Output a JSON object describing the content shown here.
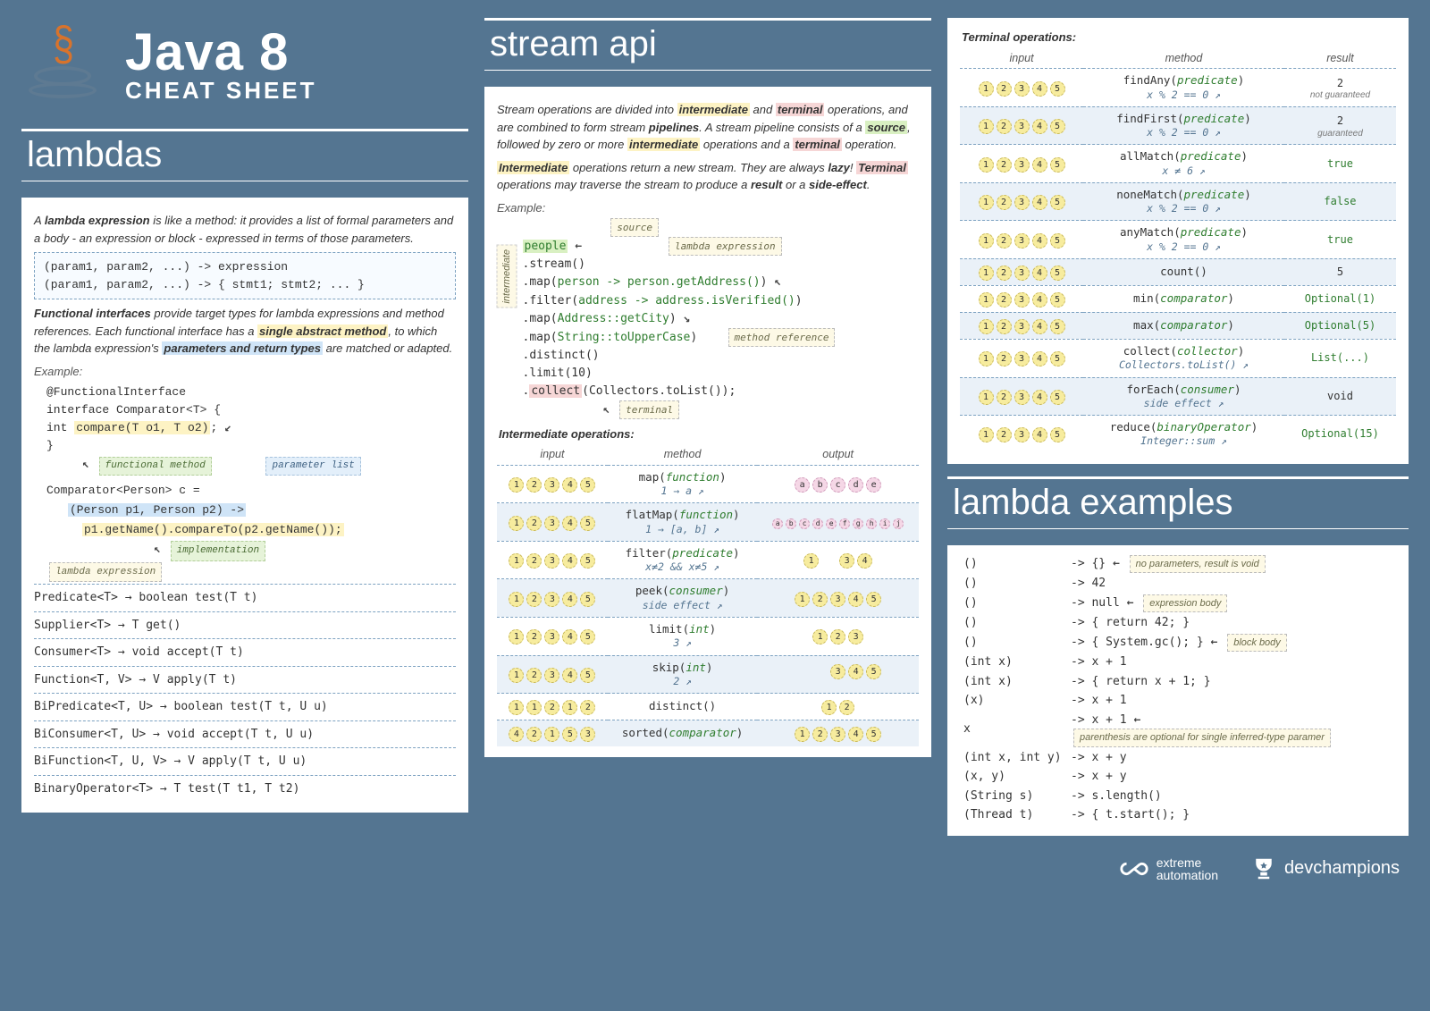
{
  "colors": {
    "page_bg": "#547591",
    "card_bg": "#ffffff",
    "hl_yellow": "#fdf3c4",
    "hl_green": "#d9f0c2",
    "hl_blue": "#cfe4f7",
    "hl_pink": "#f6d6d6",
    "ball_yellow": "#f7ec9e",
    "ball_grey": "#e7e7e7",
    "ball_pink": "#f5d7e6",
    "dash_border": "#7da2c1"
  },
  "header": {
    "title": "Java 8",
    "subtitle": "CHEAT SHEET"
  },
  "sections": {
    "lambdas_title": "lambdas",
    "stream_title": "stream api",
    "examples_title": "lambda examples"
  },
  "lambdas": {
    "intro_a": "A ",
    "intro_b": "lambda expression",
    "intro_c": " is like a method: it provides a list of formal parameters and a body - an expression or block - expressed in terms of those parameters.",
    "syntax1": "(param1, param2, ...) -> expression",
    "syntax2": "(param1, param2, ...) -> { stmt1; stmt2; ... }",
    "fi_a": "Functional interfaces",
    "fi_b": " provide target types for lambda expressions and method references. Each functional interface has a ",
    "fi_c": "single abstract method",
    "fi_d": ", to which the lambda expression's ",
    "fi_e": "parameters and return types",
    "fi_f": " are matched or adapted.",
    "example_label": "Example:",
    "fi_code_l1": "@FunctionalInterface",
    "fi_code_l2": "interface Comparator<T> {",
    "fi_code_l3a": "    int ",
    "fi_code_l3b": "compare(T o1, T o2)",
    "fi_code_l3c": ";",
    "fi_code_l4": "}",
    "annot_functional_method": "functional method",
    "annot_param_list": "parameter list",
    "comp_l1": "Comparator<Person> c =",
    "comp_l2": "(Person p1, Person p2) ->",
    "comp_l3": "p1.getName().compareTo(p2.getName());",
    "annot_impl": "implementation",
    "annot_lambda_expr": "lambda expression",
    "fi_list": [
      "Predicate<T> → boolean test(T t)",
      "Supplier<T> → T get()",
      "Consumer<T> → void accept(T t)",
      "Function<T, V> → V apply(T t)",
      "BiPredicate<T, U> → boolean test(T t, U u)",
      "BiConsumer<T, U> → void accept(T t, U u)",
      "BiFunction<T, U, V> → V apply(T t, U u)",
      "BinaryOperator<T> → T test(T t1, T t2)"
    ]
  },
  "stream": {
    "p1_a": "Stream operations are divided into ",
    "p1_b": "intermediate",
    "p1_c": " and ",
    "p1_d": "terminal",
    "p1_e": " operations, and are combined to form stream ",
    "p1_f": "pipelines",
    "p1_g": ". A stream pipeline consists of a ",
    "p1_h": "source",
    "p1_i": ", followed by zero or more ",
    "p1_j": "intermediate",
    "p1_k": " operations and a ",
    "p1_l": "terminal",
    "p1_m": " operation.",
    "p2_a": "Intermediate",
    "p2_b": " operations return a new stream. They are always ",
    "p2_c": "lazy",
    "p2_d": "! ",
    "p2_e": "Terminal",
    "p2_f": " operations may traverse the stream to produce a ",
    "p2_g": "result",
    "p2_h": " or a ",
    "p2_i": "side-effect",
    "p2_j": ".",
    "example_label": "Example:",
    "annot_source": "source",
    "annot_lambda": "lambda expression",
    "annot_methodref": "method reference",
    "annot_terminal": "terminal",
    "annot_intermediate": "intermediate",
    "code": {
      "l1": "people",
      "l2": "  .stream()",
      "l3a": "  .map(",
      "l3b": "person -> person.getAddress()",
      "l3c": ")",
      "l4a": "  .filter(",
      "l4b": "address -> address.isVerified()",
      "l4c": ")",
      "l5a": "  .map(",
      "l5b": "Address::getCity",
      "l5c": ")",
      "l6a": "  .map(",
      "l6b": "String::toUpperCase",
      "l6c": ")",
      "l7": "  .distinct()",
      "l8": "  .limit(10)",
      "l9a": "  .",
      "l9b": "collect",
      "l9c": "(Collectors.toList());"
    }
  },
  "intermediate_table": {
    "title": "Intermediate operations:",
    "headers": {
      "input": "input",
      "method": "method",
      "output": "output"
    },
    "rows": [
      {
        "input": "12345_y",
        "method": "map(<i>function</i>)",
        "sub": "1 → a ↗",
        "output": "abcde_p"
      },
      {
        "input": "12345_y",
        "method": "flatMap(<i>function</i>)",
        "sub": "1 → [a, b] ↗",
        "output": "abcdefghij_p_small"
      },
      {
        "input": "12345_y",
        "method": "filter(<i>predicate</i>)",
        "sub": "x≠2 && x≠5 ↗",
        "output": "1_34_y"
      },
      {
        "input": "12345_y",
        "method": "peek(<i>consumer</i>)",
        "sub": "side effect ↗",
        "output": "12345_y"
      },
      {
        "input": "12345_y",
        "method": "limit(<i>int</i>)",
        "sub": "3 ↗",
        "output": "123_y"
      },
      {
        "input": "12345_y",
        "method": "skip(<i>int</i>)",
        "sub": "2 ↗",
        "output": "345_y"
      },
      {
        "input": "11212_y",
        "method": "distinct()",
        "sub": "",
        "output": "12_y"
      },
      {
        "input": "42153_y",
        "method": "sorted(<i>comparator</i>)",
        "sub": "",
        "output": "12345_y"
      }
    ]
  },
  "terminal_table": {
    "title": "Terminal operations:",
    "headers": {
      "input": "input",
      "method": "method",
      "result": "result"
    },
    "rows": [
      {
        "input": "12345_y",
        "method": "findAny(<i>predicate</i>)",
        "sub": "x % 2 == 0 ↗",
        "result": "2",
        "res_sub": "not guaranteed",
        "res_cls": "result-mono"
      },
      {
        "input": "12345_y",
        "method": "findFirst(<i>predicate</i>)",
        "sub": "x % 2 == 0 ↗",
        "result": "2",
        "res_sub": "guaranteed",
        "res_cls": "result-mono"
      },
      {
        "input": "12345_y",
        "method": "allMatch(<i>predicate</i>)",
        "sub": "x ≠ 6 ↗",
        "result": "true",
        "res_cls": "result-green"
      },
      {
        "input": "12345_y",
        "method": "noneMatch(<i>predicate</i>)",
        "sub": "x % 2 == 0 ↗",
        "result": "false",
        "res_cls": "result-green"
      },
      {
        "input": "12345_y",
        "method": "anyMatch(<i>predicate</i>)",
        "sub": "x % 2 == 0 ↗",
        "result": "true",
        "res_cls": "result-green"
      },
      {
        "input": "12345_y",
        "method": "count()",
        "sub": "",
        "result": "5",
        "res_cls": "result-mono"
      },
      {
        "input": "12345_y",
        "method": "min(<i>comparator</i>)",
        "sub": "",
        "result": "Optional(1)",
        "res_cls": "result-green"
      },
      {
        "input": "12345_y",
        "method": "max(<i>comparator</i>)",
        "sub": "",
        "result": "Optional(5)",
        "res_cls": "result-green"
      },
      {
        "input": "12345_y",
        "method": "collect(<i>collector</i>)",
        "sub": "Collectors.toList() ↗",
        "result": "List(...)",
        "res_cls": "result-green"
      },
      {
        "input": "12345_y",
        "method": "forEach(<i>consumer</i>)",
        "sub": "side effect ↗",
        "result": "void",
        "res_cls": "result-mono"
      },
      {
        "input": "12345_y",
        "method": "reduce(<i>binaryOperator</i>)",
        "sub": "Integer::sum ↗",
        "result": "Optional(15)",
        "res_cls": "result-green"
      }
    ]
  },
  "examples": {
    "rows": [
      {
        "l": "()",
        "r": "-> {}",
        "note": "no parameters, result is void",
        "arrow": "←"
      },
      {
        "l": "()",
        "r": "-> 42",
        "note": "",
        "arrow": ""
      },
      {
        "l": "()",
        "r": "-> null",
        "note": "expression body",
        "arrow": "←"
      },
      {
        "l": "()",
        "r": "-> { return 42; }",
        "note": "",
        "arrow": ""
      },
      {
        "l": "()",
        "r": "-> { System.gc(); }",
        "note": "block body",
        "arrow": "←"
      },
      {
        "l": "(int x)",
        "r": "-> x + 1",
        "note": "",
        "arrow": ""
      },
      {
        "l": "(int x)",
        "r": "-> { return x + 1; }",
        "note": "",
        "arrow": ""
      },
      {
        "l": "(x)",
        "r": "-> x + 1",
        "note": "",
        "arrow": ""
      },
      {
        "l": "x",
        "r": "-> x + 1",
        "note": "parenthesis are optional for single inferred-type paramer",
        "arrow": "←"
      },
      {
        "l": "(int x, int y)",
        "r": "-> x + y",
        "note": "",
        "arrow": ""
      },
      {
        "l": "(x, y)",
        "r": "-> x + y",
        "note": "",
        "arrow": ""
      },
      {
        "l": "(String s)",
        "r": "-> s.length()",
        "note": "",
        "arrow": ""
      },
      {
        "l": "(Thread t)",
        "r": "-> { t.start(); }",
        "note": "",
        "arrow": ""
      }
    ]
  },
  "footer": {
    "brand1": "extreme automation",
    "brand2": "devchampions"
  }
}
